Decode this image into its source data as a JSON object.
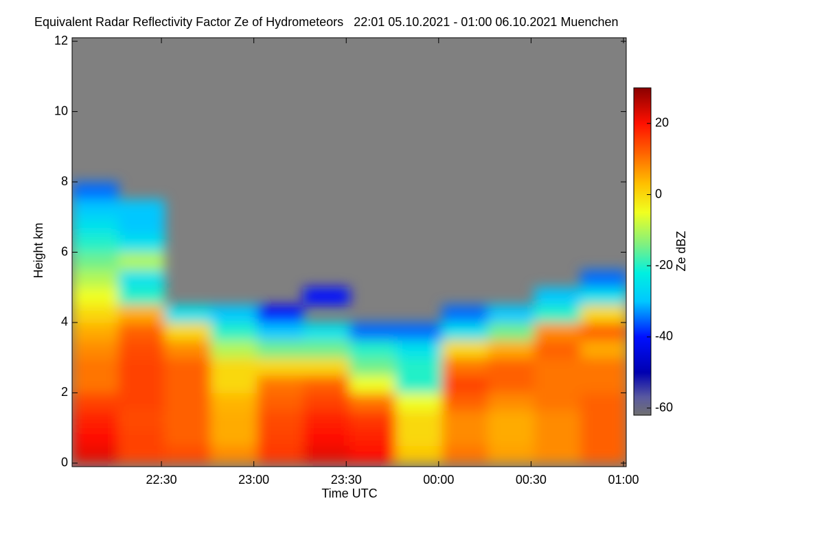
{
  "chart_data": {
    "type": "heatmap",
    "title": "Equivalent Radar Reflectivity Factor Ze of Hydrometeors   22:01 05.10.2021 - 01:00 06.10.2021 Muenchen",
    "x_label": "Time UTC",
    "y_label": "Height km",
    "colorbar_label": "Ze dBZ",
    "x": [
      22.142,
      22.392,
      22.642,
      22.892,
      23.142,
      23.392,
      23.642,
      23.892,
      24.142,
      24.392,
      24.642,
      24.892
    ],
    "y": [
      0.25,
      0.75,
      1.25,
      1.75,
      2.25,
      2.75,
      3.25,
      3.75,
      4.25,
      4.75,
      5.25,
      5.75,
      6.25,
      6.75,
      7.25,
      7.75
    ],
    "z": [
      [
        22,
        15,
        14,
        8,
        16,
        22,
        20,
        2,
        10,
        6,
        8,
        12
      ],
      [
        20,
        15,
        12,
        5,
        15,
        20,
        18,
        0,
        8,
        5,
        8,
        12
      ],
      [
        18,
        14,
        12,
        5,
        14,
        18,
        16,
        0,
        8,
        5,
        8,
        12
      ],
      [
        15,
        15,
        12,
        4,
        12,
        15,
        10,
        -5,
        12,
        8,
        10,
        12
      ],
      [
        10,
        15,
        12,
        0,
        10,
        12,
        -5,
        -20,
        15,
        12,
        10,
        10
      ],
      [
        10,
        15,
        12,
        0,
        0,
        0,
        -15,
        -20,
        10,
        12,
        10,
        10
      ],
      [
        8,
        14,
        8,
        -10,
        -15,
        -15,
        -20,
        -25,
        0,
        5,
        12,
        5
      ],
      [
        5,
        12,
        0,
        -20,
        -30,
        -25,
        -35,
        -35,
        -25,
        -15,
        8,
        12
      ],
      [
        0,
        5,
        -25,
        -30,
        -40,
        null,
        null,
        null,
        -35,
        -30,
        -20,
        0
      ],
      [
        -5,
        -20,
        null,
        null,
        null,
        -40,
        null,
        null,
        null,
        null,
        -30,
        -25
      ],
      [
        -10,
        -25,
        null,
        null,
        null,
        null,
        null,
        null,
        null,
        null,
        null,
        -35
      ],
      [
        -15,
        -10,
        null,
        null,
        null,
        null,
        null,
        null,
        null,
        null,
        null,
        null
      ],
      [
        -20,
        -25,
        null,
        null,
        null,
        null,
        null,
        null,
        null,
        null,
        null,
        null
      ],
      [
        -25,
        -30,
        null,
        null,
        null,
        null,
        null,
        null,
        null,
        null,
        null,
        null
      ],
      [
        -30,
        -30,
        null,
        null,
        null,
        null,
        null,
        null,
        null,
        null,
        null,
        null
      ],
      [
        -35,
        null,
        null,
        null,
        null,
        null,
        null,
        null,
        null,
        null,
        null,
        null
      ]
    ],
    "xlim": [
      22.0167,
      25.015
    ],
    "ylim": [
      -0.1,
      12.1
    ],
    "clim": [
      -62,
      30
    ],
    "xticks": [
      {
        "value": 22.5,
        "label": "22:30"
      },
      {
        "value": 23.0,
        "label": "23:00"
      },
      {
        "value": 23.5,
        "label": "23:30"
      },
      {
        "value": 24.0,
        "label": "00:00"
      },
      {
        "value": 24.5,
        "label": "00:30"
      },
      {
        "value": 25.0,
        "label": "01:00"
      }
    ],
    "yticks": [
      0,
      2,
      4,
      6,
      8,
      10,
      12
    ],
    "cticks": [
      -60,
      -40,
      -20,
      0,
      20
    ],
    "no_data_color": "#808080",
    "colormap": [
      {
        "value": -62,
        "color": "#707070"
      },
      {
        "value": -57,
        "color": "#5a5aa0"
      },
      {
        "value": -50,
        "color": "#0000b0"
      },
      {
        "value": -40,
        "color": "#0010ff"
      },
      {
        "value": -30,
        "color": "#00c8ff"
      },
      {
        "value": -22,
        "color": "#00f0e0"
      },
      {
        "value": -14,
        "color": "#80f080"
      },
      {
        "value": -5,
        "color": "#f0ff20"
      },
      {
        "value": 3,
        "color": "#ffc000"
      },
      {
        "value": 12,
        "color": "#ff6000"
      },
      {
        "value": 20,
        "color": "#ff1000"
      },
      {
        "value": 30,
        "color": "#8a0000"
      }
    ]
  }
}
